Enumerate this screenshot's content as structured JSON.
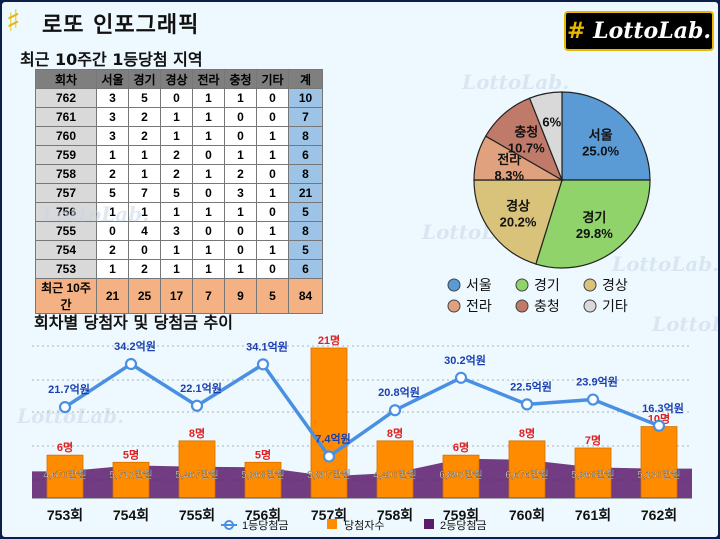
{
  "header": {
    "title": "로또 인포그래픽",
    "logo_text": "LottoLab.",
    "logo_mark": "#"
  },
  "table_title": "최근 10주간 1등당첨 지역",
  "trend_title": "회차별 당첨자 및 당첨금 추이",
  "watermark": "LottoLab.",
  "table": {
    "columns": [
      "회차",
      "서울",
      "경기",
      "경상",
      "전라",
      "충청",
      "기타",
      "계"
    ],
    "rows": [
      [
        "762",
        "3",
        "5",
        "0",
        "1",
        "1",
        "0",
        "10"
      ],
      [
        "761",
        "3",
        "2",
        "1",
        "1",
        "0",
        "0",
        "7"
      ],
      [
        "760",
        "3",
        "2",
        "1",
        "1",
        "0",
        "1",
        "8"
      ],
      [
        "759",
        "1",
        "1",
        "2",
        "0",
        "1",
        "1",
        "6"
      ],
      [
        "758",
        "2",
        "1",
        "2",
        "1",
        "2",
        "0",
        "8"
      ],
      [
        "757",
        "5",
        "7",
        "5",
        "0",
        "3",
        "1",
        "21"
      ],
      [
        "756",
        "1",
        "1",
        "1",
        "1",
        "1",
        "0",
        "5"
      ],
      [
        "755",
        "0",
        "4",
        "3",
        "0",
        "0",
        "1",
        "8"
      ],
      [
        "754",
        "2",
        "0",
        "1",
        "1",
        "0",
        "1",
        "5"
      ],
      [
        "753",
        "1",
        "2",
        "1",
        "1",
        "1",
        "0",
        "6"
      ]
    ],
    "summary": [
      "최근 10주간",
      "21",
      "25",
      "17",
      "7",
      "9",
      "5",
      "84"
    ]
  },
  "chart_data": [
    {
      "type": "pie",
      "labels": [
        "서울",
        "경기",
        "경상",
        "전라",
        "충청",
        "기타"
      ],
      "values": [
        25.0,
        29.8,
        20.2,
        8.3,
        10.7,
        6
      ],
      "value_labels": [
        "25.0%",
        "29.8%",
        "20.2%",
        "8.3%",
        "10.7%",
        "6%"
      ],
      "colors": [
        "#5b9bd5",
        "#8fd36a",
        "#d9c27a",
        "#e0a27e",
        "#c07a6a",
        "#d9d9d9"
      ],
      "legend": [
        "서울",
        "경기",
        "경상",
        "전라",
        "충청",
        "기타"
      ],
      "legend_position": "bottom"
    },
    {
      "type": "bar",
      "categories": [
        "753회",
        "754회",
        "755회",
        "756회",
        "757회",
        "758회",
        "759회",
        "760회",
        "761회",
        "762회"
      ],
      "series": [
        {
          "name": "1등당첨금",
          "kind": "line",
          "values": [
            21.7,
            34.2,
            22.1,
            34.1,
            7.4,
            20.8,
            30.2,
            22.5,
            23.9,
            16.3
          ],
          "labels": [
            "21.7억원",
            "34.2억원",
            "22.1억원",
            "34.1억원",
            "7.4억원",
            "20.8억원",
            "30.2억원",
            "22.5억원",
            "23.9억원",
            "16.3억원"
          ],
          "color": "#4a90e2"
        },
        {
          "name": "당첨자수",
          "kind": "bar",
          "values": [
            6,
            5,
            8,
            5,
            21,
            8,
            6,
            8,
            7,
            10
          ],
          "labels": [
            "6명",
            "5명",
            "8명",
            "5명",
            "21명",
            "8명",
            "6명",
            "8명",
            "7명",
            "10명"
          ],
          "color": "#ff8c00"
        },
        {
          "name": "2등당첨금",
          "kind": "area",
          "values": [
            4670,
            5712,
            5467,
            5368,
            3807,
            4400,
            6892,
            6676,
            5368,
            5130
          ],
          "labels": [
            "4,670만원",
            "5,712만원",
            "5,467만원",
            "5,368만원",
            "3,807만원",
            "4,400만원",
            "6,892만원",
            "6,676만원",
            "5,368만원",
            "5,130만원"
          ],
          "color": "#5a1b6b"
        }
      ],
      "legend": [
        "1등당첨금",
        "당첨자수",
        "2등당첨금"
      ],
      "legend_position": "bottom",
      "grid": true
    }
  ]
}
